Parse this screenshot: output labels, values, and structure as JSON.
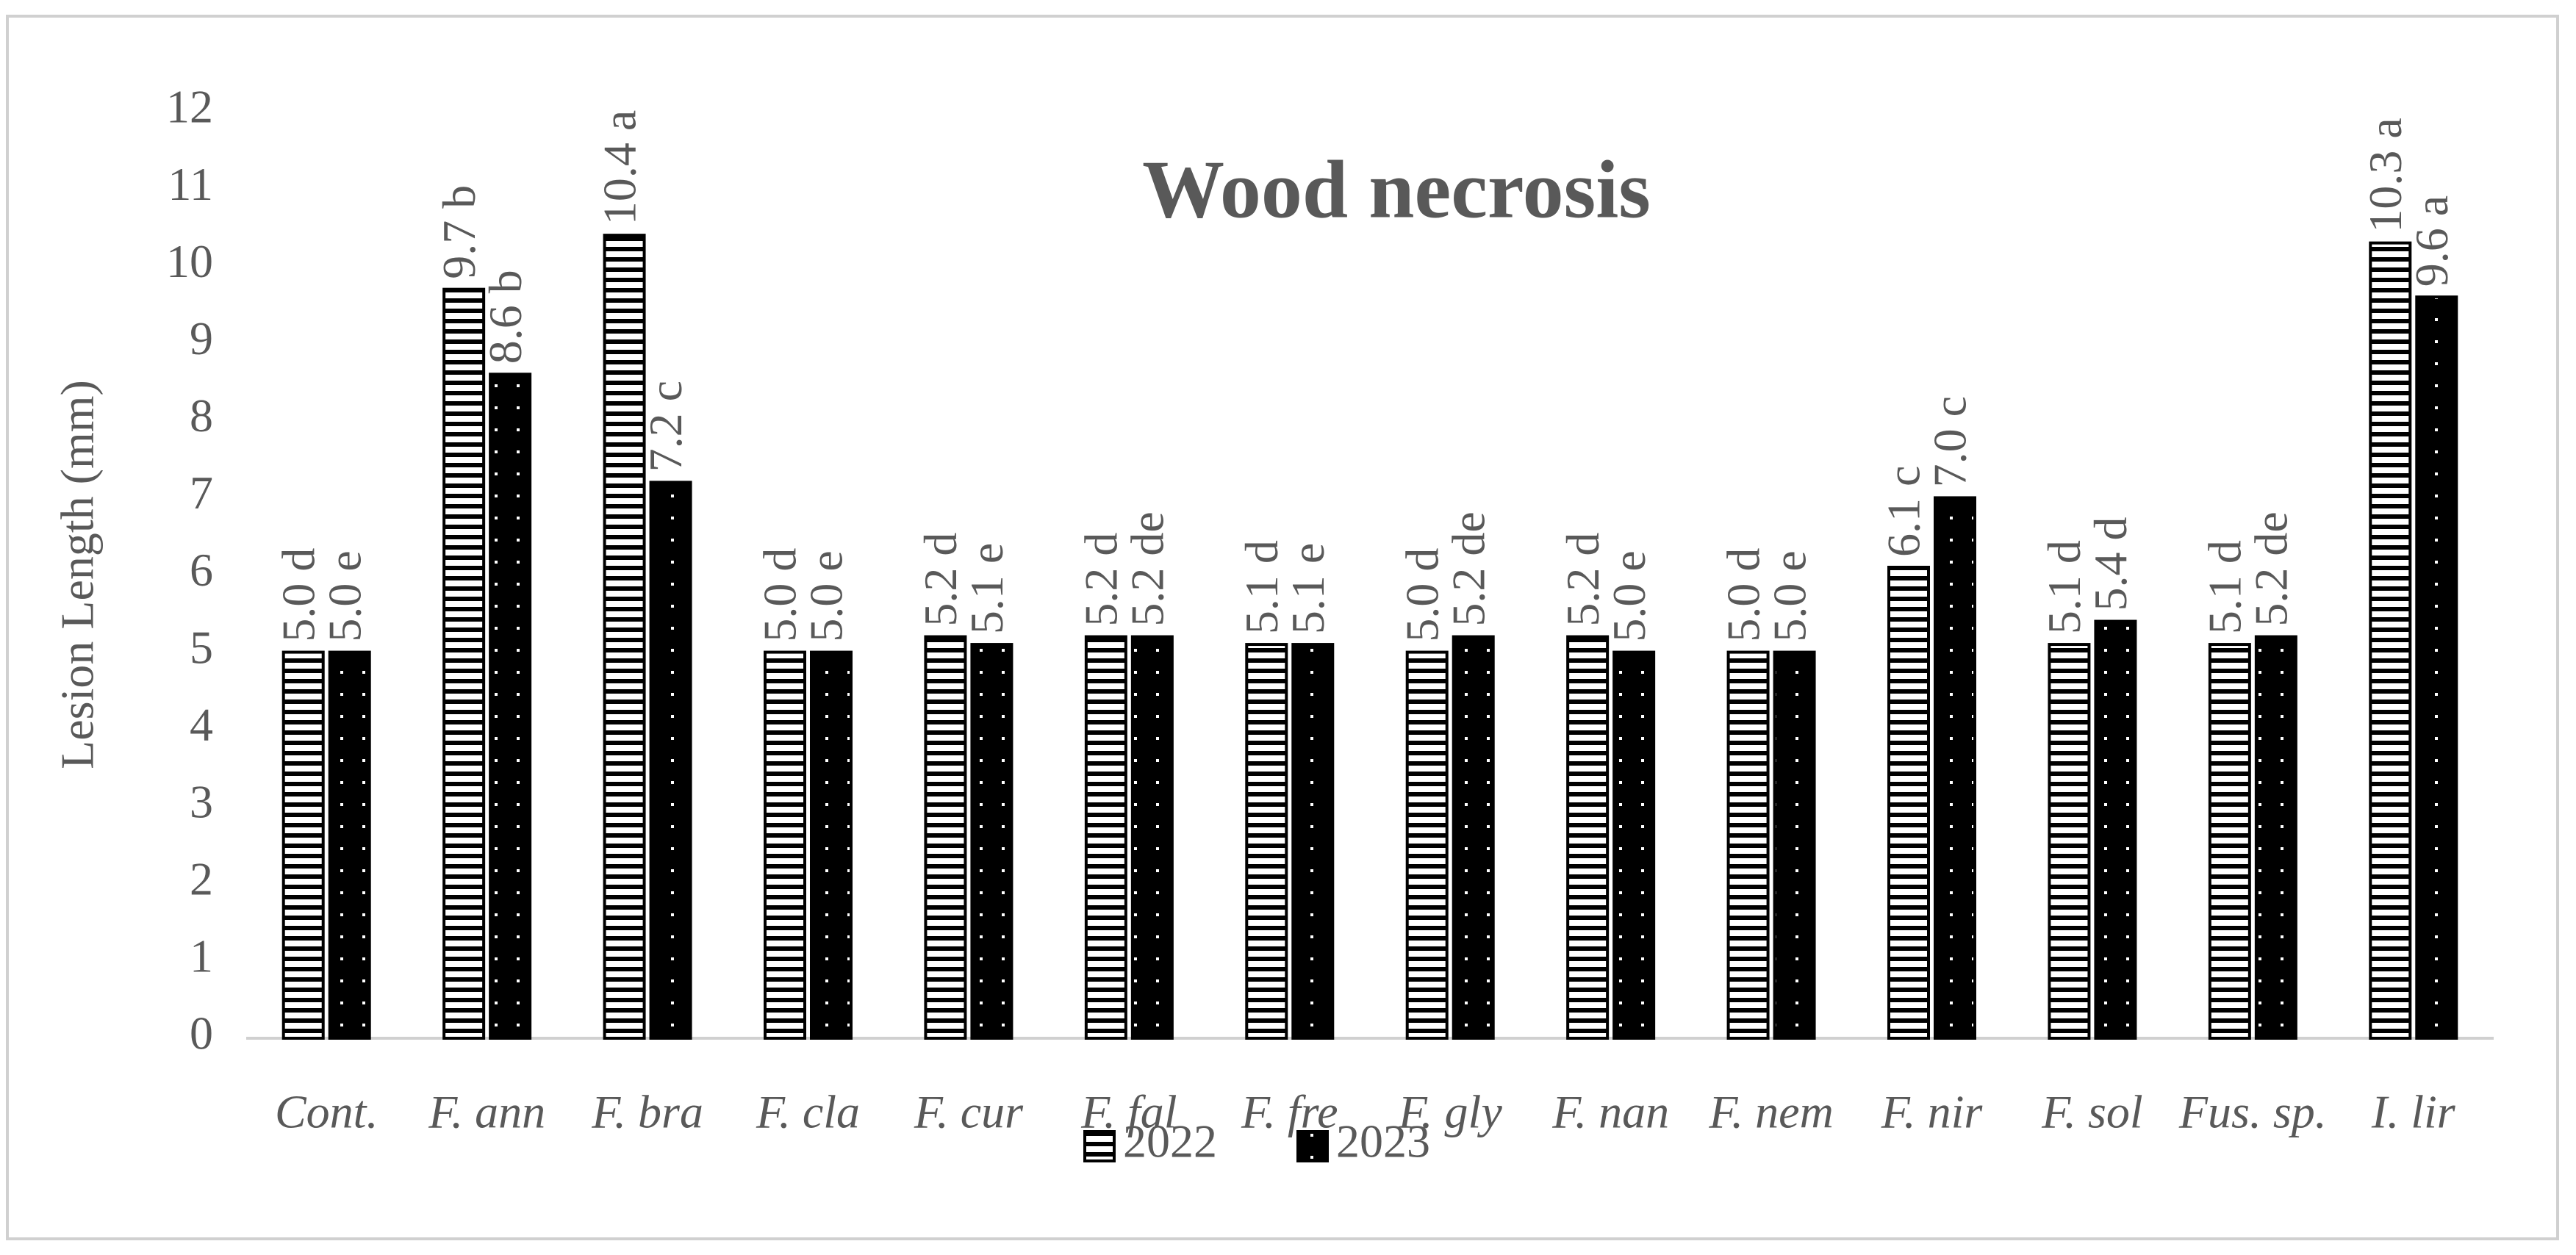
{
  "chart_data": {
    "type": "bar",
    "title": "Wood necrosis",
    "y_label": "Lesion Length (mm)",
    "categories": [
      "Cont.",
      "F. ann",
      "F. bra",
      "F. cla",
      "F. cur",
      "F. fal",
      "F. fre",
      "F. gly",
      "F. nan",
      "F. nem",
      "F. nir",
      "F. sol",
      "Fus. sp.",
      "I. lir"
    ],
    "series": [
      {
        "name": "2022",
        "color": "#000000",
        "pattern": "stripes",
        "values": [
          5.0,
          9.7,
          10.4,
          5.0,
          5.2,
          5.2,
          5.1,
          5.0,
          5.2,
          5.0,
          6.1,
          5.1,
          5.1,
          10.3
        ],
        "value_labels": [
          "5.0 d",
          "9.7 b",
          "10.4 a",
          "5.0 d",
          "5.2 d",
          "5.2 d",
          "5.1 d",
          "5.0 d",
          "5.2 d",
          "5.0 d",
          "6.1 c",
          "5.1 d",
          "5.1 d",
          "10.3 a"
        ]
      },
      {
        "name": "2023",
        "color": "#000000",
        "pattern": "dots",
        "values": [
          5.0,
          8.6,
          7.2,
          5.0,
          5.1,
          5.2,
          5.1,
          5.2,
          5.0,
          5.0,
          7.0,
          5.4,
          5.2,
          9.6
        ],
        "value_labels": [
          "5.0 e",
          "8.6 b",
          "7.2 c",
          "5.0 e",
          "5.1 e",
          "5.2 de",
          "5.1 e",
          "5.2 de",
          "5.0 e",
          "5.0 e",
          "7.0 c",
          "5.4 d",
          "5.2 de",
          "9.6 a"
        ]
      }
    ],
    "ylim": [
      0,
      12
    ],
    "yticks": [
      0,
      1,
      2,
      3,
      4,
      5,
      6,
      7,
      8,
      9,
      10,
      11,
      12
    ],
    "grid": false,
    "legend": "bottom"
  }
}
